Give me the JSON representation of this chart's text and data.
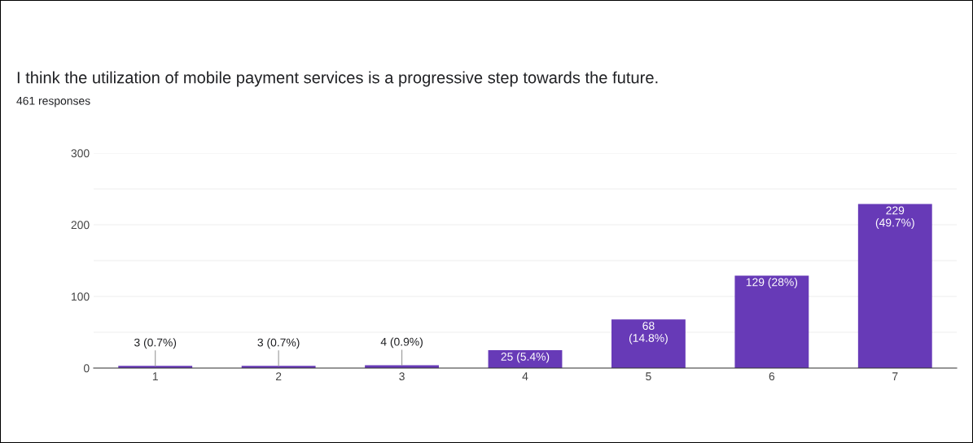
{
  "chart_data": {
    "type": "bar",
    "title": "I think the utilization of mobile payment services is a progressive step towards the future.",
    "subtitle": "461 responses",
    "categories": [
      "1",
      "2",
      "3",
      "4",
      "5",
      "6",
      "7"
    ],
    "values": [
      3,
      3,
      4,
      25,
      68,
      129,
      229
    ],
    "value_labels": [
      "3 (0.7%)",
      "3 (0.7%)",
      "4 (0.9%)",
      "25 (5.4%)",
      "68\n(14.8%)",
      "129 (28%)",
      "229\n(49.7%)"
    ],
    "color": "#673ab7",
    "ylim": [
      0,
      300
    ],
    "yticks": [
      0,
      {
        "value": 50,
        "label": null
      },
      100,
      {
        "value": 150,
        "label": null
      },
      200,
      {
        "value": 250,
        "label": null
      },
      300
    ],
    "grid": "y"
  }
}
